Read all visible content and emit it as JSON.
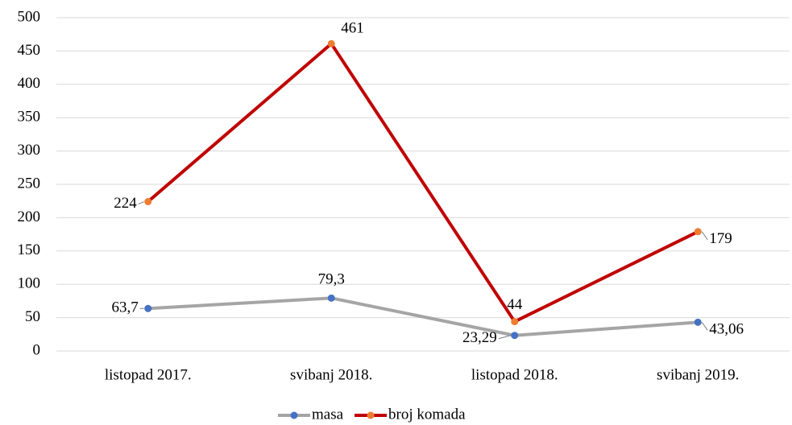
{
  "chart_data": {
    "type": "line",
    "categories": [
      "listopad 2017.",
      "svibanj 2018.",
      "listopad 2018.",
      "svibanj 2019."
    ],
    "series": [
      {
        "name": "masa",
        "color": "#a5a5a5",
        "marker_color": "#4472c4",
        "values": [
          63.7,
          79.3,
          23.29,
          43.06
        ],
        "value_labels": [
          "63,7",
          "79,3",
          "23,29",
          "43,06"
        ]
      },
      {
        "name": "broj komada",
        "color": "#c00000",
        "marker_color": "#ed7d31",
        "values": [
          224,
          461,
          44,
          179
        ]
      }
    ],
    "ylim": [
      0,
      500
    ],
    "yticks": [
      0,
      50,
      100,
      150,
      200,
      250,
      300,
      350,
      400,
      450,
      500
    ],
    "grid": true,
    "legend": "bottom"
  }
}
